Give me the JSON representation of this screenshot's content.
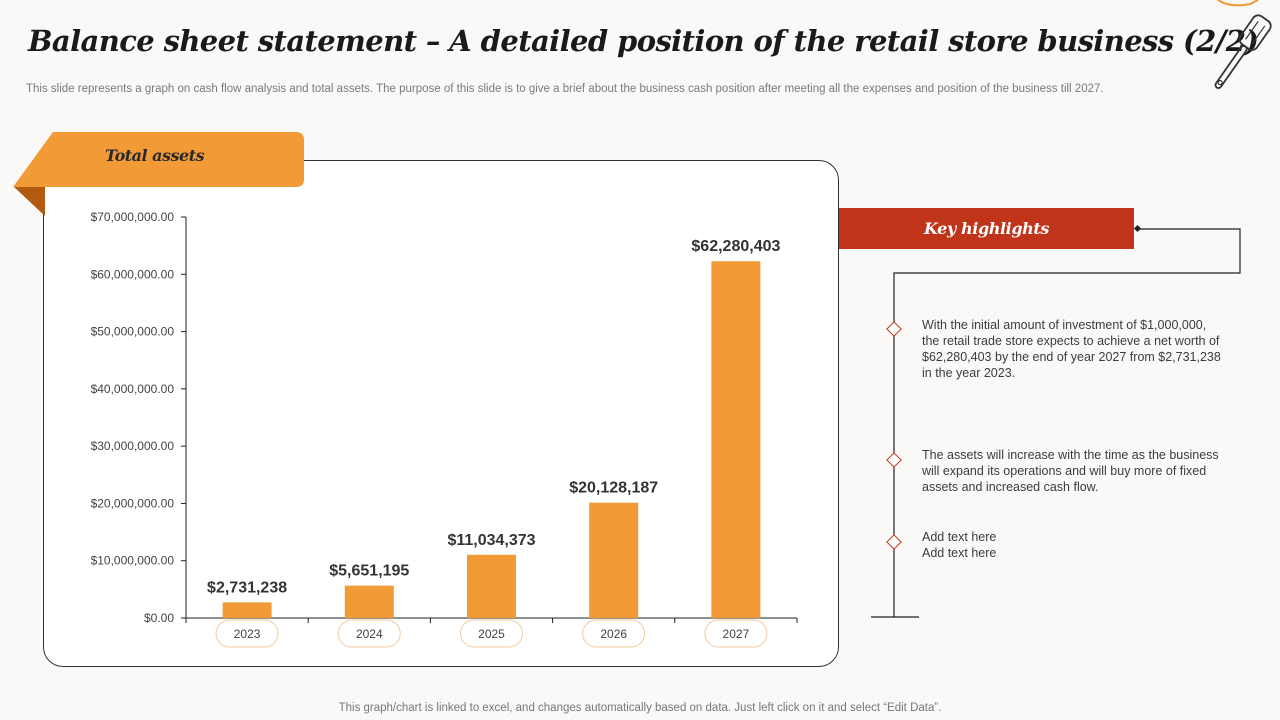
{
  "slide": {
    "title": "Balance sheet statement – A detailed position of the retail store business (2/2)",
    "subtitle": "This slide represents a graph on cash flow analysis and total assets. The purpose of this slide is to give a brief about the business cash position after meeting all the expenses and position of the business till 2027.",
    "footer": "This graph/chart is linked to excel, and changes automatically based on data. Just left click on it and select “Edit Data”."
  },
  "panel": {
    "label": "Total assets"
  },
  "highlights": {
    "title": "Key highlights",
    "items": [
      "With the initial amount of investment of $1,000,000, the retail trade store expects to achieve a net worth of $62,280,403 by the end of year 2027 from $2,731,238 in the year 2023.",
      "The assets will increase with the time as the business will expand its operations and will buy more of fixed assets and increased cash flow.",
      "Add text here\nAdd text here"
    ]
  },
  "colors": {
    "accent": "#f29a35",
    "highlight": "#c0341a",
    "text": "#333333"
  },
  "chart_data": {
    "type": "bar",
    "title": "Total assets",
    "categories": [
      "2023",
      "2024",
      "2025",
      "2026",
      "2027"
    ],
    "values": [
      2731238,
      5651195,
      11034373,
      20128187,
      62280403
    ],
    "data_labels": [
      "$2,731,238",
      "$5,651,195",
      "$11,034,373",
      "$20,128,187",
      "$62,280,403"
    ],
    "yticks": [
      "$0.00",
      "$10,000,000.00",
      "$20,000,000.00",
      "$30,000,000.00",
      "$40,000,000.00",
      "$50,000,000.00",
      "$60,000,000.00",
      "$70,000,000.00"
    ],
    "ylim": [
      0,
      70000000
    ],
    "xlabel": "",
    "ylabel": ""
  }
}
